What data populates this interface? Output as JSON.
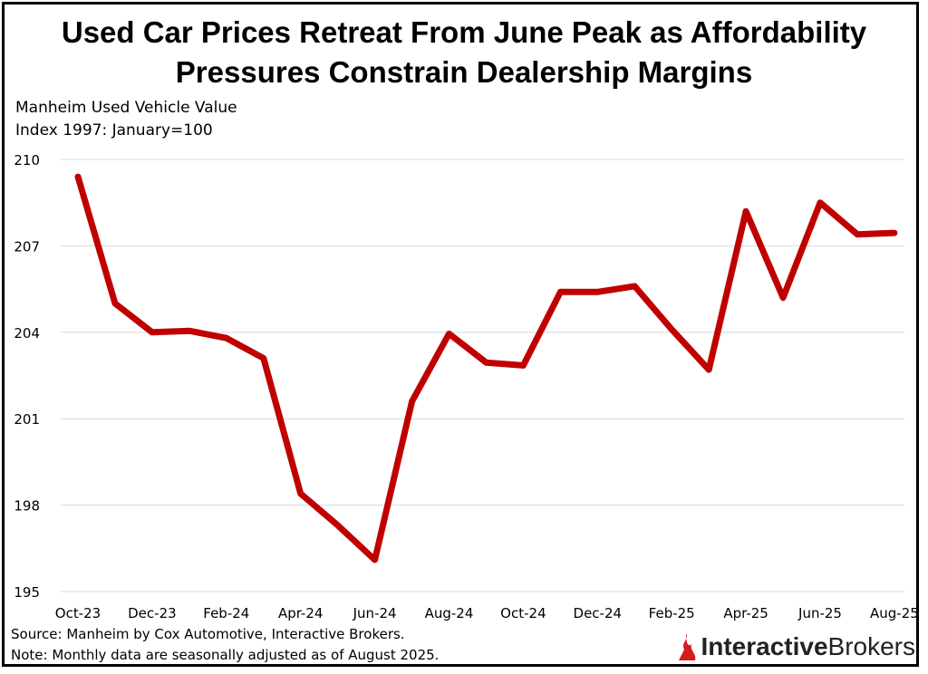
{
  "title_line1": "Used Car Prices Retreat From June Peak as Affordability",
  "title_line2": "Pressures Constrain Dealership Margins",
  "footer": {
    "source": "Source: Manheim by Cox Automotive, Interactive Brokers.",
    "note": "Note: Monthly data are seasonally adjusted as of August 2025."
  },
  "brand": {
    "part1": "Interactive",
    "part2": "Brokers",
    "logo_color": "#d71920"
  },
  "chart_data": {
    "type": "line",
    "title": "Used Car Prices Retreat From June Peak as Affordability Pressures Constrain Dealership Margins",
    "ylabel_line1": "Manheim Used Vehicle Value",
    "ylabel_line2": "Index 1997: January=100",
    "ylim": [
      195,
      210
    ],
    "yticks": [
      195,
      198,
      201,
      204,
      207,
      210
    ],
    "grid": true,
    "x": [
      "Oct-23",
      "Nov-23",
      "Dec-23",
      "Jan-24",
      "Feb-24",
      "Mar-24",
      "Apr-24",
      "May-24",
      "Jun-24",
      "Jul-24",
      "Aug-24",
      "Sep-24",
      "Oct-24",
      "Nov-24",
      "Dec-24",
      "Jan-25",
      "Feb-25",
      "Mar-25",
      "Apr-25",
      "May-25",
      "Jun-25",
      "Jul-25",
      "Aug-25"
    ],
    "xtick_labels": [
      "Oct-23",
      "Dec-23",
      "Feb-24",
      "Apr-24",
      "Jun-24",
      "Aug-24",
      "Oct-24",
      "Dec-24",
      "Feb-25",
      "Apr-25",
      "Jun-25",
      "Aug-25"
    ],
    "series": [
      {
        "name": "Manheim Used Vehicle Value Index",
        "color": "#c00000",
        "values": [
          209.4,
          205.0,
          204.0,
          204.05,
          203.8,
          203.1,
          198.4,
          197.3,
          196.1,
          201.6,
          203.95,
          202.95,
          202.85,
          205.4,
          205.4,
          205.6,
          204.1,
          202.7,
          208.2,
          205.2,
          208.5,
          207.4,
          207.45
        ]
      }
    ]
  }
}
